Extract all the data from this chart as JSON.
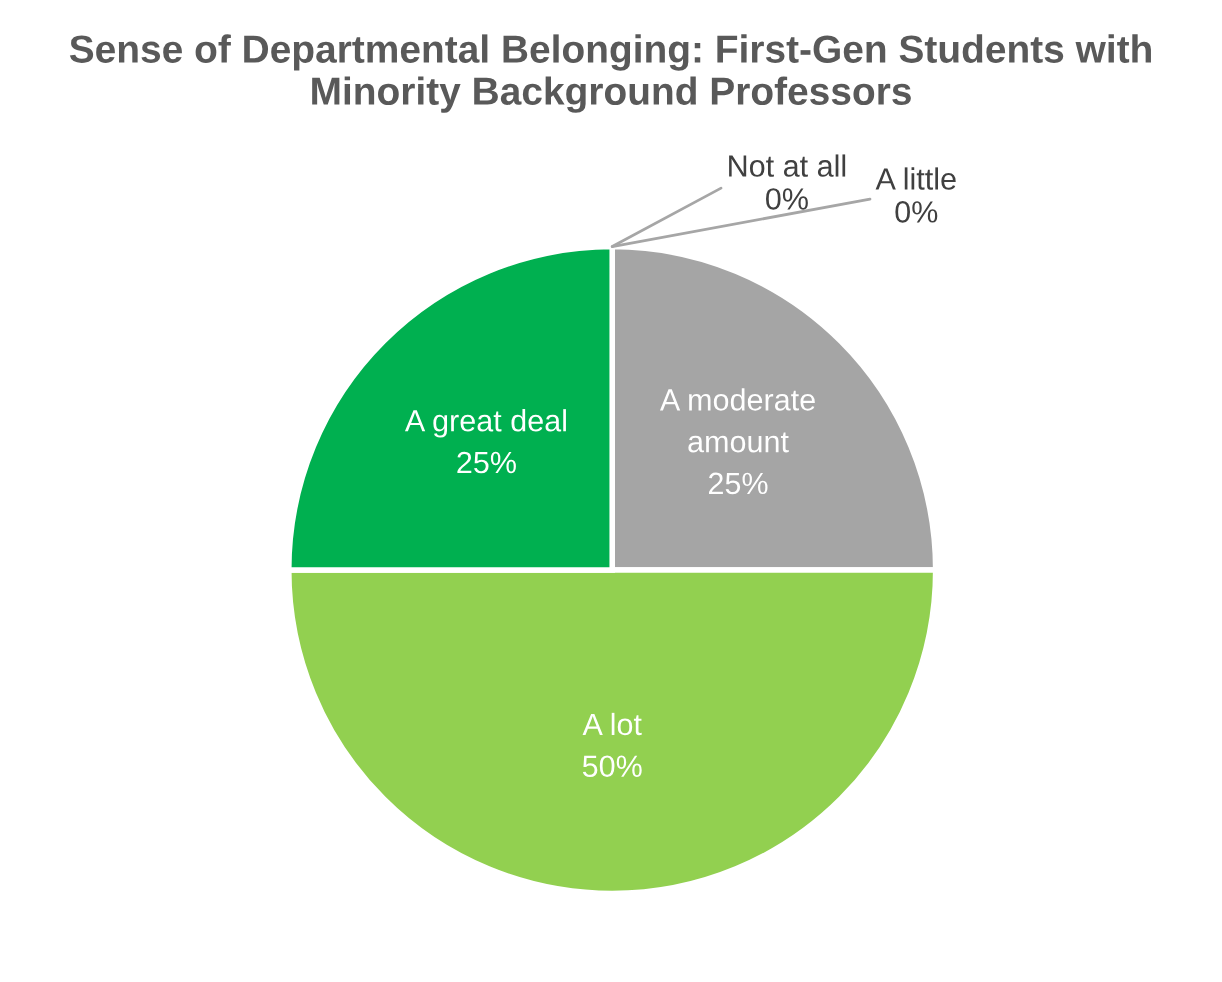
{
  "chart_data": {
    "type": "pie",
    "title": "Sense of Departmental Belonging: First-Gen Students with Minority Background Professors",
    "categories": [
      "Not at all",
      "A little",
      "A moderate amount",
      "A lot",
      "A great deal"
    ],
    "values": [
      0,
      0,
      25,
      50,
      25
    ],
    "colors": [
      "#4472c4",
      "#ed7d31",
      "#a5a5a5",
      "#92d050",
      "#00b050"
    ],
    "value_labels": [
      "0%",
      "0%",
      "25%",
      "50%",
      "25%"
    ],
    "legend": false
  }
}
